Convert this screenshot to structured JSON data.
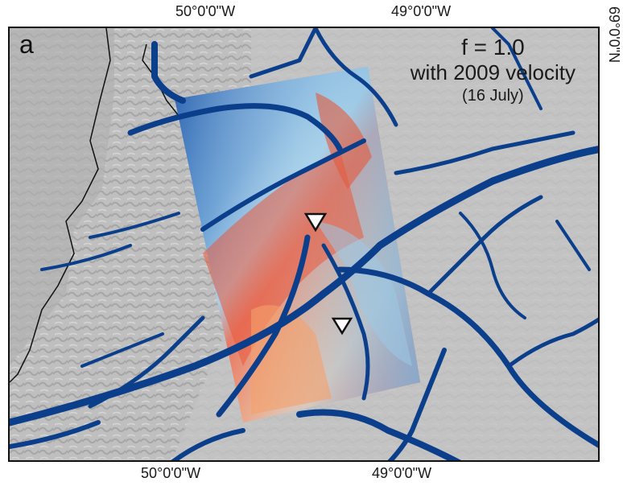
{
  "panel": {
    "letter": "a",
    "title_line1": "f = 1.0",
    "title_line2": "with 2009 velocity",
    "title_line3": "(16 July)"
  },
  "axes": {
    "top_ticks": [
      "50°0'0\"W",
      "49°0'0\"W"
    ],
    "bottom_ticks": [
      "50°0'0\"W",
      "49°0'0\"W"
    ],
    "right_tick": "69°0'0\"N"
  },
  "colors": {
    "streams": "#0b3f8c",
    "background_relief": "#bdbdbd",
    "coast_line": "#111111",
    "warm": "#e24a2a",
    "cool": "#2f6fbf"
  },
  "markers": [
    {
      "symbol": "down-triangle"
    },
    {
      "symbol": "down-triangle"
    }
  ]
}
